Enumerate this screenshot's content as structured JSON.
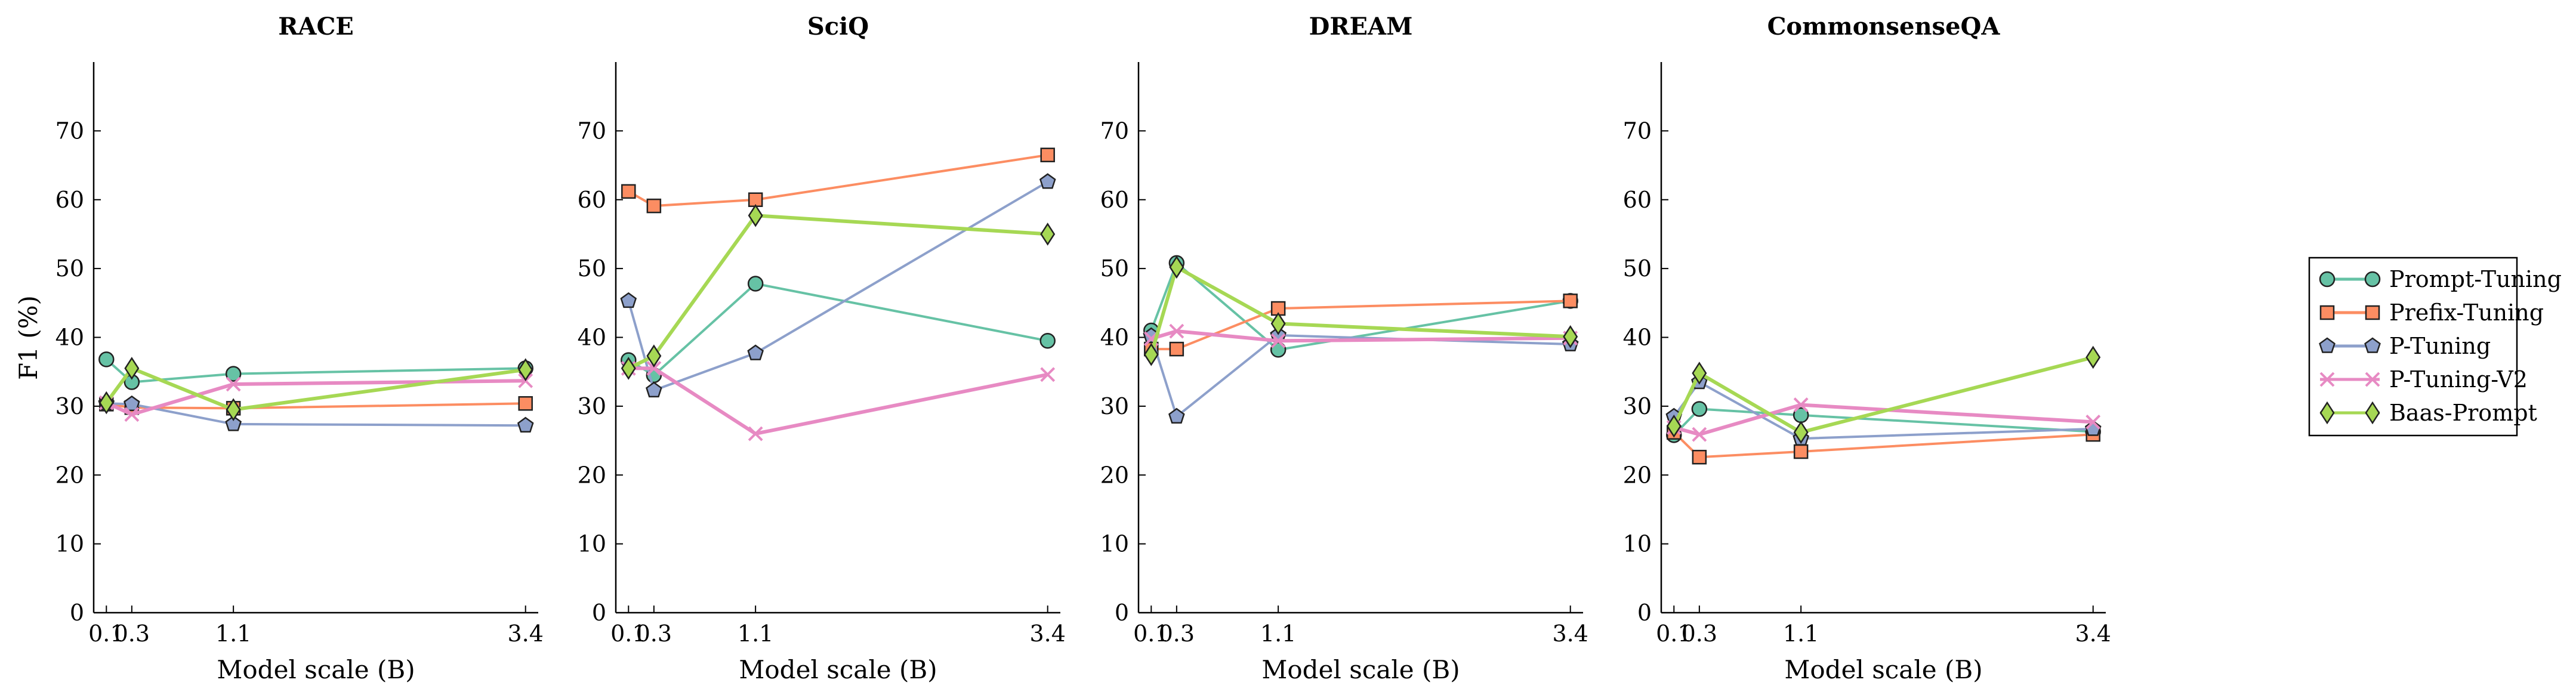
{
  "figure": {
    "ylabel": "F1 (%)"
  },
  "chart_data": [
    {
      "type": "line",
      "title": "RACE",
      "xlabel": "Model scale (B)",
      "x": [
        0.1,
        0.3,
        1.1,
        3.4
      ],
      "xticklabels": [
        "0.1",
        "0.3",
        "1.1",
        "3.4"
      ],
      "ylim": [
        0,
        80
      ],
      "yticks": [
        0,
        10,
        20,
        30,
        40,
        50,
        60,
        70
      ],
      "series": [
        {
          "name": "Prompt-Tuning",
          "values": [
            36.8,
            33.5,
            34.7,
            35.5
          ]
        },
        {
          "name": "Prefix-Tuning",
          "values": [
            30.3,
            29.8,
            29.7,
            30.4
          ]
        },
        {
          "name": "P-Tuning",
          "values": [
            30.4,
            30.3,
            27.4,
            27.2
          ]
        },
        {
          "name": "P-Tuning-V2",
          "values": [
            30.5,
            28.8,
            33.2,
            33.7
          ]
        },
        {
          "name": "Baas-Prompt",
          "values": [
            30.5,
            35.5,
            29.5,
            35.3
          ]
        }
      ]
    },
    {
      "type": "line",
      "title": "SciQ",
      "xlabel": "Model scale (B)",
      "x": [
        0.1,
        0.3,
        1.1,
        3.4
      ],
      "xticklabels": [
        "0.1",
        "0.3",
        "1.1",
        "3.4"
      ],
      "ylim": [
        0,
        80
      ],
      "yticks": [
        0,
        10,
        20,
        30,
        40,
        50,
        60,
        70
      ],
      "series": [
        {
          "name": "Prompt-Tuning",
          "values": [
            36.7,
            34.5,
            47.8,
            39.5
          ]
        },
        {
          "name": "Prefix-Tuning",
          "values": [
            61.2,
            59.1,
            60.0,
            66.5
          ]
        },
        {
          "name": "P-Tuning",
          "values": [
            45.3,
            32.3,
            37.7,
            62.6
          ]
        },
        {
          "name": "P-Tuning-V2",
          "values": [
            35.5,
            35.5,
            26.0,
            34.6
          ]
        },
        {
          "name": "Baas-Prompt",
          "values": [
            35.5,
            37.3,
            57.7,
            55.0
          ]
        }
      ]
    },
    {
      "type": "line",
      "title": "DREAM",
      "xlabel": "Model scale (B)",
      "x": [
        0.1,
        0.3,
        1.1,
        3.4
      ],
      "xticklabels": [
        "0.1",
        "0.3",
        "1.1",
        "3.4"
      ],
      "ylim": [
        0,
        80
      ],
      "yticks": [
        0,
        10,
        20,
        30,
        40,
        50,
        60,
        70
      ],
      "series": [
        {
          "name": "Prompt-Tuning",
          "values": [
            41.0,
            50.8,
            38.2,
            45.3
          ]
        },
        {
          "name": "Prefix-Tuning",
          "values": [
            38.3,
            38.3,
            44.2,
            45.3
          ]
        },
        {
          "name": "P-Tuning",
          "values": [
            40.2,
            28.5,
            40.3,
            39.0
          ]
        },
        {
          "name": "P-Tuning-V2",
          "values": [
            39.8,
            40.9,
            39.5,
            39.9
          ]
        },
        {
          "name": "Baas-Prompt",
          "values": [
            37.5,
            50.2,
            42.0,
            40.1
          ]
        }
      ]
    },
    {
      "type": "line",
      "title": "CommonsenseQA",
      "xlabel": "Model scale (B)",
      "x": [
        0.1,
        0.3,
        1.1,
        3.4
      ],
      "xticklabels": [
        "0.1",
        "0.3",
        "1.1",
        "3.4"
      ],
      "ylim": [
        0,
        80
      ],
      "yticks": [
        0,
        10,
        20,
        30,
        40,
        50,
        60,
        70
      ],
      "series": [
        {
          "name": "Prompt-Tuning",
          "values": [
            25.8,
            29.6,
            28.7,
            26.3
          ]
        },
        {
          "name": "Prefix-Tuning",
          "values": [
            26.2,
            22.6,
            23.4,
            25.9
          ]
        },
        {
          "name": "P-Tuning",
          "values": [
            28.5,
            33.5,
            25.3,
            26.7
          ]
        },
        {
          "name": "P-Tuning-V2",
          "values": [
            26.9,
            25.9,
            30.2,
            27.7
          ]
        },
        {
          "name": "Baas-Prompt",
          "values": [
            27.1,
            34.8,
            26.2,
            37.1
          ]
        }
      ]
    }
  ],
  "legend": {
    "location": "right",
    "entries": [
      {
        "name": "Prompt-Tuning",
        "color": "#66c2a5",
        "marker": "circle"
      },
      {
        "name": "Prefix-Tuning",
        "color": "#fc8d62",
        "marker": "square"
      },
      {
        "name": "P-Tuning",
        "color": "#8da0cb",
        "marker": "pentagon"
      },
      {
        "name": "P-Tuning-V2",
        "color": "#e78ac3",
        "marker": "x"
      },
      {
        "name": "Baas-Prompt",
        "color": "#a6d854",
        "marker": "diamond"
      }
    ]
  }
}
